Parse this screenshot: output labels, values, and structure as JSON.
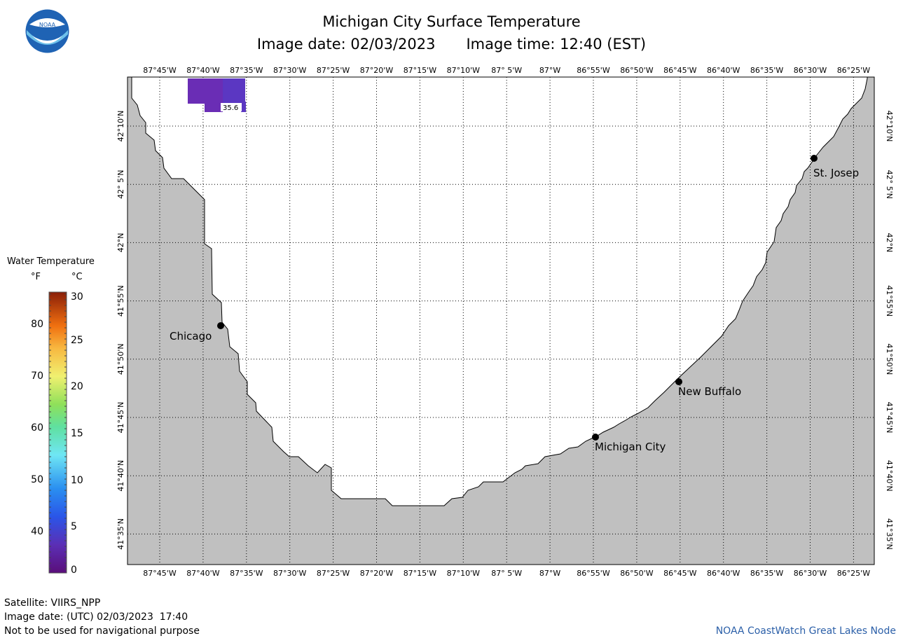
{
  "header": {
    "title": "Michigan City Surface Temperature",
    "image_date": "Image date: 02/03/2023",
    "image_time": "Image time: 12:40 (EST)",
    "logo_text": "NOAA"
  },
  "map": {
    "lon_labels": [
      "87°45'W",
      "87°40'W",
      "87°35'W",
      "87°30'W",
      "87°25'W",
      "87°20'W",
      "87°15'W",
      "87°10'W",
      "87° 5'W",
      "87°W",
      "86°55'W",
      "86°50'W",
      "86°45'W",
      "86°40'W",
      "86°35'W",
      "86°30'W",
      "86°25'W"
    ],
    "lat_labels": [
      "42°10'N",
      "42° 5'N",
      "42°N",
      "41°55'N",
      "41°50'N",
      "41°45'N",
      "41°40'N",
      "41°35'N"
    ],
    "cities": [
      {
        "name": "Chicago"
      },
      {
        "name": "New Buffalo"
      },
      {
        "name": "Michigan City"
      },
      {
        "name": "St. Josep"
      }
    ],
    "sample_label": "35.6",
    "colors": {
      "land": "#c0c0c0",
      "water": "#ffffff",
      "sst_patch_1": "#6a2db5",
      "sst_patch_2": "#5b37c2"
    }
  },
  "legend": {
    "title": "Water Temperature",
    "unit_f": "°F",
    "unit_c": "°C",
    "f_labels": [
      "80",
      "70",
      "60",
      "50",
      "40"
    ],
    "c_labels": [
      "30",
      "25",
      "20",
      "15",
      "10",
      "5",
      "0"
    ]
  },
  "footer": {
    "satellite": "Satellite: VIIRS_NPP",
    "utc_date": "Image date: (UTC) 02/03/2023  17:40",
    "disclaimer": "Not to be used for navigational purpose",
    "credit": "NOAA CoastWatch Great Lakes Node"
  }
}
